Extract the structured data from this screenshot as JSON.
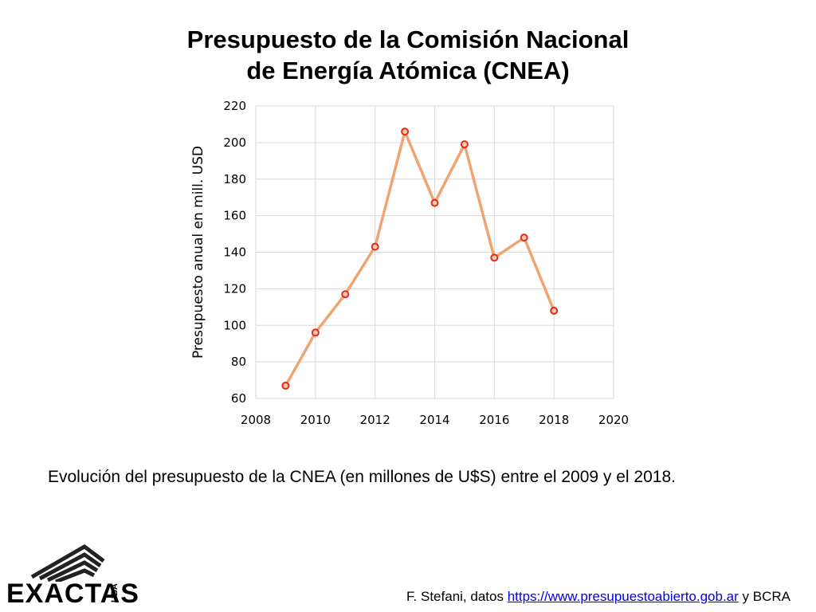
{
  "title": {
    "line1": "Presupuesto de la Comisión Nacional",
    "line2": "de Energía Atómica (CNEA)"
  },
  "chart_data": {
    "type": "line",
    "ylabel": "Presupuesto anual en mill. USD",
    "xlabel": "",
    "xlim": [
      2008,
      2020
    ],
    "ylim": [
      60,
      220
    ],
    "xticks": [
      "2008",
      "2010",
      "2012",
      "2014",
      "2016",
      "2018",
      "2020"
    ],
    "yticks": [
      "60",
      "80",
      "100",
      "120",
      "140",
      "160",
      "180",
      "200",
      "220"
    ],
    "grid": true,
    "x": [
      2009,
      2010,
      2011,
      2012,
      2013,
      2014,
      2015,
      2016,
      2017,
      2018
    ],
    "values": [
      67,
      96,
      117,
      143,
      206,
      167,
      199,
      137,
      148,
      108
    ],
    "line_color": "#f0a470",
    "marker_color": "#e8271b",
    "marker_fill": "#f7c9a6"
  },
  "caption": "Evolución del presupuesto de la CNEA (en millones de U$S) entre el 2009 y el 2018.",
  "logo": {
    "text": "EXACTAS",
    "sub": "UBA"
  },
  "credit": {
    "prefix": "F. Stefani, datos ",
    "link": "https://www.presupuestoabierto.gob.ar",
    "suffix": " y BCRA"
  }
}
